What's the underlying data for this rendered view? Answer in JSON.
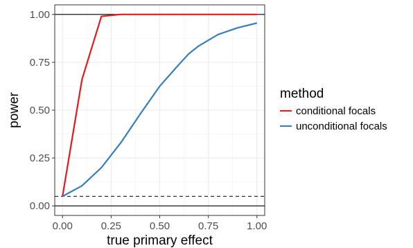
{
  "chart_data": {
    "type": "line",
    "xlabel": "true primary effect",
    "ylabel": "power",
    "xlim": [
      -0.04,
      1.04
    ],
    "ylim": [
      -0.05,
      1.05
    ],
    "x_ticks": [
      0.0,
      0.25,
      0.5,
      0.75,
      1.0
    ],
    "x_tick_labels": [
      "0.00",
      "0.25",
      "0.50",
      "0.75",
      "1.00"
    ],
    "y_ticks": [
      0.0,
      0.25,
      0.5,
      0.75,
      1.0
    ],
    "y_tick_labels": [
      "0.00",
      "0.25",
      "0.50",
      "0.75",
      "1.00"
    ],
    "grid": true,
    "legend": {
      "title": "method",
      "placement": "right"
    },
    "reference_lines": [
      {
        "y": 1.0,
        "style": "solid",
        "color": "#000000"
      },
      {
        "y": 0.0,
        "style": "solid",
        "color": "#000000"
      },
      {
        "y": 0.05,
        "style": "dashed",
        "color": "#000000"
      }
    ],
    "series": [
      {
        "name": "conditional focals",
        "color": "#e41a1c",
        "x": [
          0.0,
          0.1,
          0.2,
          0.3,
          0.4,
          0.5,
          0.6,
          0.7,
          0.8,
          0.9,
          1.0
        ],
        "values": [
          0.05,
          0.66,
          0.99,
          1.0,
          1.0,
          1.0,
          1.0,
          1.0,
          1.0,
          1.0,
          1.0
        ]
      },
      {
        "name": "unconditional focals",
        "color": "#377eb8",
        "x": [
          0.0,
          0.1,
          0.2,
          0.3,
          0.4,
          0.5,
          0.6,
          0.65,
          0.7,
          0.8,
          0.9,
          1.0
        ],
        "values": [
          0.05,
          0.105,
          0.2,
          0.33,
          0.48,
          0.625,
          0.74,
          0.795,
          0.835,
          0.895,
          0.93,
          0.955
        ]
      }
    ]
  }
}
